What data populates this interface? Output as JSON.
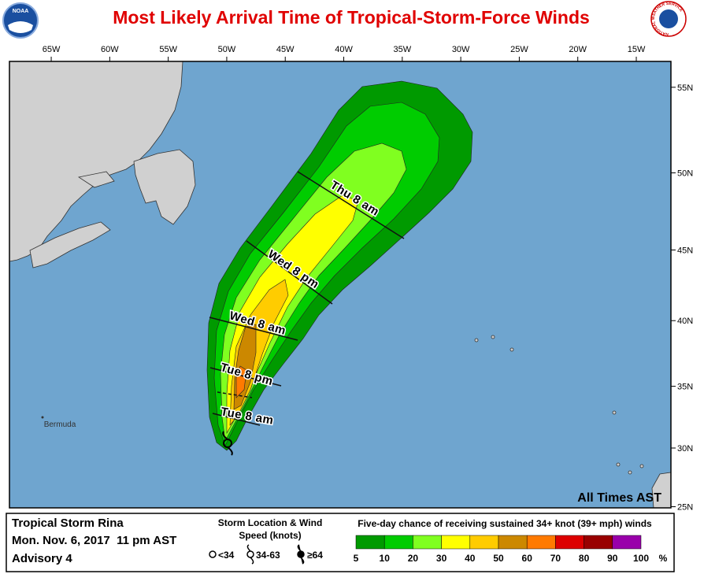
{
  "header": {
    "title": "Most Likely Arrival Time of Tropical-Storm-Force Winds",
    "noaa_logo": "NOAA",
    "nws_logo": "NATIONAL WEATHER SERVICE"
  },
  "map": {
    "lonlim": [
      -68.57,
      -12.04
    ],
    "latlim": [
      24.9,
      56.4
    ],
    "lon_ticks": [
      {
        "value": -65,
        "label": "65W"
      },
      {
        "value": -60,
        "label": "60W"
      },
      {
        "value": -55,
        "label": "55W"
      },
      {
        "value": -50,
        "label": "50W"
      },
      {
        "value": -45,
        "label": "45W"
      },
      {
        "value": -40,
        "label": "40W"
      },
      {
        "value": -35,
        "label": "35W"
      },
      {
        "value": -30,
        "label": "30W"
      },
      {
        "value": -25,
        "label": "25W"
      },
      {
        "value": -20,
        "label": "20W"
      },
      {
        "value": -15,
        "label": "15W"
      }
    ],
    "lat_ticks": [
      {
        "value": 55,
        "label": "55N"
      },
      {
        "value": 50,
        "label": "50N"
      },
      {
        "value": 45,
        "label": "45N"
      },
      {
        "value": 40,
        "label": "40N"
      },
      {
        "value": 35,
        "label": "35N"
      },
      {
        "value": 30,
        "label": "30N"
      },
      {
        "value": 25,
        "label": "25N"
      }
    ],
    "time_labels": [
      "Thu 8 am",
      "Wed 8 pm",
      "Wed 8 am",
      "Tue 8 pm",
      "Tue 8 am"
    ],
    "place_label": "Bermuda",
    "note": "All Times AST"
  },
  "info": {
    "storm": "Tropical Storm Rina",
    "date": "Mon. Nov. 6, 2017  11 pm AST",
    "advisory": "Advisory 4"
  },
  "symbols": {
    "title": "Storm Location & Wind Speed (knots)",
    "items": [
      "<34",
      "34-63",
      "≥64"
    ]
  },
  "legend": {
    "title": "Five-day chance of receiving sustained 34+ knot (39+ mph) winds",
    "values": [
      5,
      10,
      20,
      30,
      40,
      50,
      60,
      70,
      80,
      90,
      100
    ],
    "colors": [
      "#009a00",
      "#00cc00",
      "#80ff20",
      "#ffff00",
      "#ffcc00",
      "#cc8800",
      "#ff7a00",
      "#dd0000",
      "#990000",
      "#9900aa"
    ],
    "unit": "%"
  }
}
